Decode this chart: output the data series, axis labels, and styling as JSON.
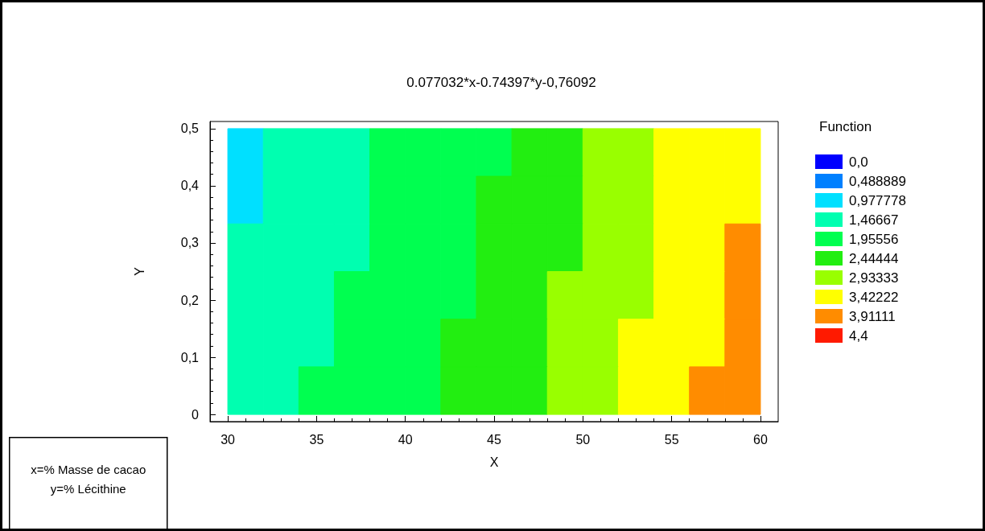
{
  "chart_data": {
    "type": "heatmap",
    "title": "0.077032*x-0.74397*y-0,76092",
    "xlabel": "X",
    "ylabel": "Y",
    "clabel": "Function",
    "annotations": [
      "x=% Masse de cacao\ny=% Lécithine"
    ],
    "xlim": [
      29,
      61
    ],
    "xticks": [
      30,
      35,
      40,
      45,
      50,
      55,
      60
    ],
    "ylim": [
      -0.0125,
      0.5125
    ],
    "yticks": [
      0,
      {
        "value": 0.1,
        "label": "0,1"
      },
      {
        "value": 0.2,
        "label": "0,2"
      },
      {
        "value": 0.3,
        "label": "0,3"
      },
      {
        "value": 0.4,
        "label": "0,4"
      },
      {
        "value": 0.5,
        "label": "0,5"
      }
    ],
    "cticks": [
      {
        "value": 0,
        "label": "0,0"
      },
      {
        "value": 0.488889,
        "label": "0,488889"
      },
      {
        "value": 0.977778,
        "label": "0,977778"
      },
      {
        "value": 1.46667,
        "label": "1,46667"
      },
      {
        "value": 1.95556,
        "label": "1,95556"
      },
      {
        "value": 2.44444,
        "label": "2,44444"
      },
      {
        "value": 2.93333,
        "label": "2,93333"
      },
      {
        "value": 3.42222,
        "label": "3,42222"
      },
      {
        "value": 3.91111,
        "label": "3,91111"
      },
      {
        "value": 4.4,
        "label": "4,4"
      }
    ],
    "colors": [
      "#0000ff",
      "#0080ff",
      "#00e0ff",
      "#00ffb0",
      "#00ff50",
      "#22ee11",
      "#99ff00",
      "#ffff00",
      "#ff8c00",
      "#ff1a00"
    ],
    "cells": [
      [
        0.977778,
        1.46667,
        1.46667,
        1.46667,
        1.95556,
        1.95556,
        1.95556,
        1.95556,
        2.44444,
        2.44444,
        2.93333,
        2.93333,
        3.42222,
        3.42222,
        3.42222
      ],
      [
        0.977778,
        1.46667,
        1.46667,
        1.46667,
        1.95556,
        1.95556,
        1.95556,
        2.44444,
        2.44444,
        2.44444,
        2.93333,
        2.93333,
        3.42222,
        3.42222,
        3.42222
      ],
      [
        1.46667,
        1.46667,
        1.46667,
        1.46667,
        1.95556,
        1.95556,
        1.95556,
        2.44444,
        2.44444,
        2.44444,
        2.93333,
        2.93333,
        3.42222,
        3.42222,
        3.91111
      ],
      [
        1.46667,
        1.46667,
        1.46667,
        1.95556,
        1.95556,
        1.95556,
        1.95556,
        2.44444,
        2.44444,
        2.93333,
        2.93333,
        2.93333,
        3.42222,
        3.42222,
        3.91111
      ],
      [
        1.46667,
        1.46667,
        1.46667,
        1.95556,
        1.95556,
        1.95556,
        2.44444,
        2.44444,
        2.44444,
        2.93333,
        2.93333,
        3.42222,
        3.42222,
        3.42222,
        3.91111
      ],
      [
        1.46667,
        1.46667,
        1.95556,
        1.95556,
        1.95556,
        1.95556,
        2.44444,
        2.44444,
        2.44444,
        2.93333,
        2.93333,
        3.42222,
        3.42222,
        3.91111,
        3.91111
      ]
    ],
    "grid": false
  }
}
